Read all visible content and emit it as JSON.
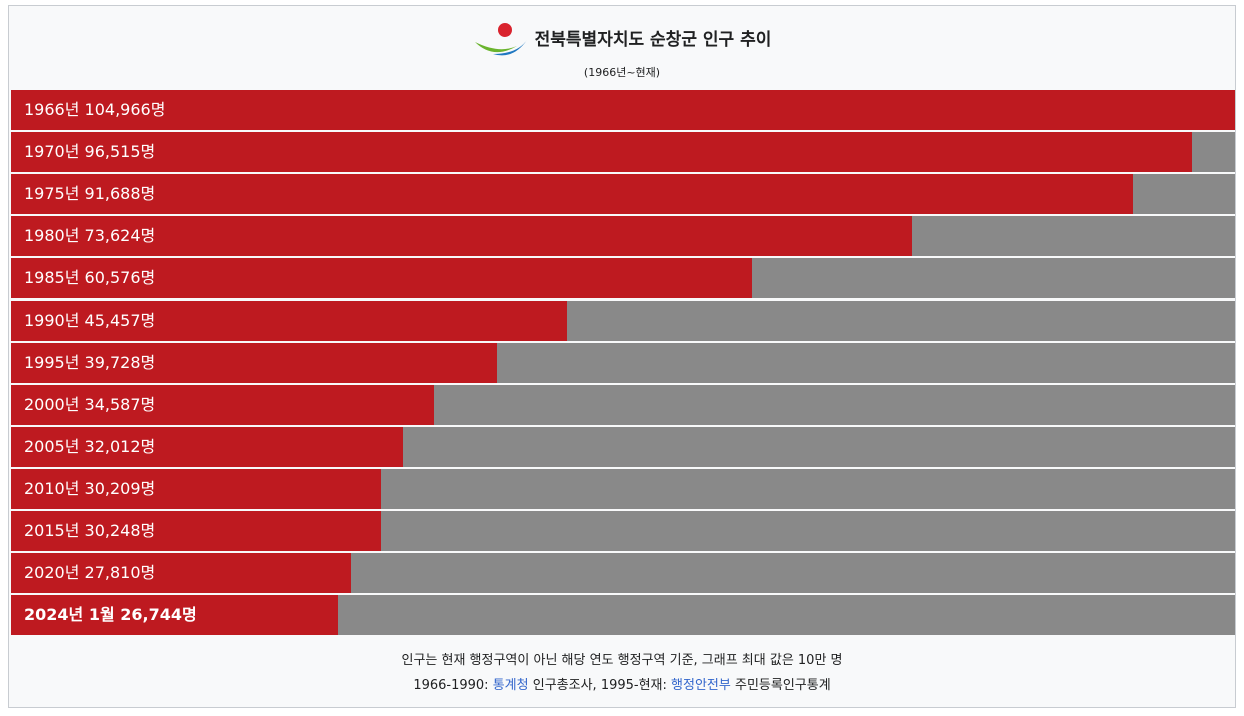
{
  "chart_data": {
    "type": "bar",
    "orientation": "horizontal",
    "title": "전북특별자치도 순창군 인구 추이",
    "subtitle": "(1966년~현재)",
    "categories": [
      "1966년",
      "1970년",
      "1975년",
      "1980년",
      "1985년",
      "1990년",
      "1995년",
      "2000년",
      "2005년",
      "2010년",
      "2015년",
      "2020년",
      "2024년 1월"
    ],
    "values": [
      104966,
      96515,
      91688,
      73624,
      60576,
      45457,
      39728,
      34587,
      32012,
      30209,
      30248,
      27810,
      26744
    ],
    "value_labels": [
      "104,966명",
      "96,515명",
      "91,688명",
      "73,624명",
      "60,576명",
      "45,457명",
      "39,728명",
      "34,587명",
      "32,012명",
      "30,209명",
      "30,248명",
      "27,810명",
      "26,744명"
    ],
    "xlim": [
      0,
      100000
    ],
    "color": "#be1a20",
    "track_color": "#898989"
  },
  "notes": {
    "line1": "인구는 현재 행정구역이 아닌 해당 연도 행정구역 기준, 그래프 최대 값은 10만 명",
    "line2": [
      {
        "text": "1966-1990:"
      },
      {
        "text": "통계청",
        "link": true
      },
      {
        "text": "인구총조사, 1995-현재:"
      },
      {
        "text": "행정안전부",
        "link": true
      },
      {
        "text": "주민등록인구통계"
      }
    ]
  }
}
